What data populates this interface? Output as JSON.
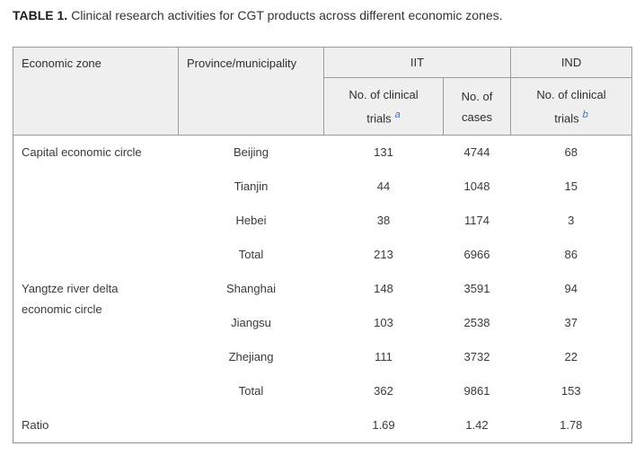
{
  "page": {
    "title_label": "TABLE 1.",
    "title_text": "Clinical research activities for CGT products across different economic zones."
  },
  "table": {
    "header": {
      "economic_zone": "Economic zone",
      "province": "Province/municipality",
      "iit_group": "IIT",
      "ind_group": "IND",
      "iit_trials_label": "No. of clinical trials",
      "iit_trials_footnote": "a",
      "iit_cases_label": "No. of cases",
      "ind_trials_label": "No. of clinical trials",
      "ind_trials_footnote": "b"
    },
    "rows": [
      {
        "zone": "Capital economic circle",
        "province": "Beijing",
        "iit_trials": "131",
        "iit_cases": "4744",
        "ind_trials": "68"
      },
      {
        "province": "Tianjin",
        "iit_trials": "44",
        "iit_cases": "1048",
        "ind_trials": "15"
      },
      {
        "province": "Hebei",
        "iit_trials": "38",
        "iit_cases": "1174",
        "ind_trials": "3"
      },
      {
        "province": "Total",
        "iit_trials": "213",
        "iit_cases": "6966",
        "ind_trials": "86"
      },
      {
        "zone": "Yangtze river delta economic circle",
        "province": "Shanghai",
        "iit_trials": "148",
        "iit_cases": "3591",
        "ind_trials": "94"
      },
      {
        "province": "Jiangsu",
        "iit_trials": "103",
        "iit_cases": "2538",
        "ind_trials": "37"
      },
      {
        "province": "Zhejiang",
        "iit_trials": "111",
        "iit_cases": "3732",
        "ind_trials": "22"
      },
      {
        "province": "Total",
        "iit_trials": "362",
        "iit_cases": "9861",
        "ind_trials": "153"
      },
      {
        "zone": "Ratio",
        "province": "",
        "iit_trials": "1.69",
        "iit_cases": "1.42",
        "ind_trials": "1.78"
      }
    ],
    "colors": {
      "header_bg": "#efefef",
      "border": "#9c9c9c",
      "outer_border": "#8f8f8f",
      "text": "#3a3a3a",
      "footnote_blue": "#3f6fb3"
    }
  }
}
